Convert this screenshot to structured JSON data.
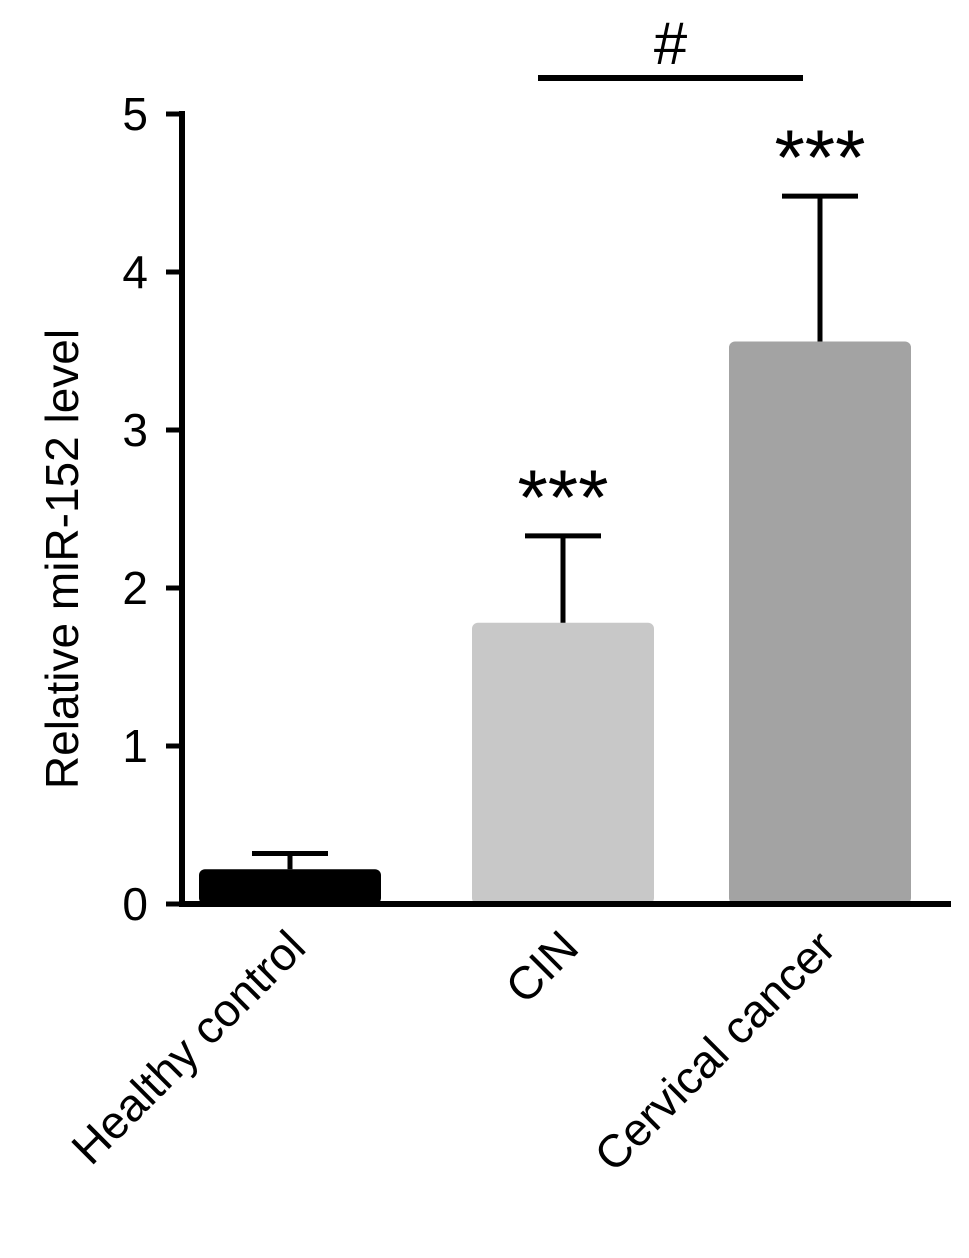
{
  "chart_data": {
    "type": "bar",
    "title": "",
    "xlabel": "",
    "ylabel": "Relative miR-152 level",
    "ylim": [
      0,
      5
    ],
    "yticks": [
      0,
      1,
      2,
      3,
      4,
      5
    ],
    "grid": false,
    "categories": [
      "Healthy control",
      "CIN",
      "Cervical cancer"
    ],
    "values": [
      0.22,
      1.78,
      3.56
    ],
    "errors": [
      0.1,
      0.55,
      0.92
    ],
    "colors": [
      "#000000",
      "#c8c8c8",
      "#a3a3a3"
    ],
    "significance": [
      "",
      "***",
      "***"
    ],
    "comparison": {
      "from": "CIN",
      "to": "Cervical cancer",
      "label": "#"
    }
  }
}
